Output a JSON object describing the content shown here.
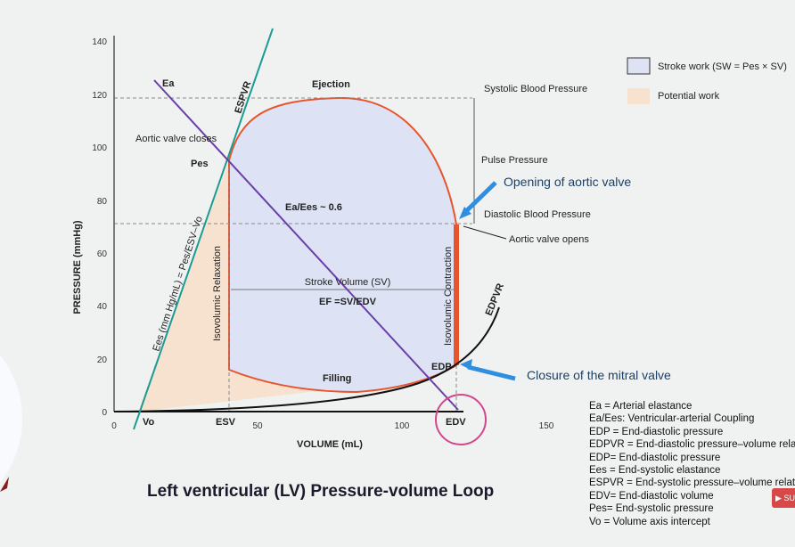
{
  "axes": {
    "y_label": "PRESSURE (mmHg)",
    "x_label": "VOLUME (mL)",
    "y_ticks": [
      "0",
      "20",
      "40",
      "60",
      "80",
      "100",
      "120",
      "140"
    ],
    "x_ticks": [
      "0",
      "50",
      "100",
      "150"
    ]
  },
  "labels": {
    "ea": "Ea",
    "espvr": "ESPVR",
    "ejection": "Ejection",
    "aortic_closes": "Aortic valve closes",
    "pes": "Pes",
    "ea_ees": "Ea/Ees ~ 0.6",
    "ees_formula": "Ees (mm Hg/mL) = Pes/ESV–Vo",
    "iso_relax": "Isovolumic Relaxation",
    "iso_contract": "Isovolumic Contraction",
    "sv": "Stroke Volume (SV)",
    "ef": "EF =SV/EDV",
    "filling": "Filling",
    "edp": "EDP",
    "edpvr": "EDPVR",
    "vo": "Vo",
    "esv": "ESV",
    "edv": "EDV",
    "systolic": "Systolic Blood Pressure",
    "pulse": "Pulse Pressure",
    "diastolic": "Diastolic Blood Pressure",
    "aortic_opens": "Aortic valve opens",
    "opening_aortic": "Opening of aortic valve",
    "closure_mitral": "Closure of the mitral valve"
  },
  "legend": [
    {
      "label": "Stroke work (SW = Pes × SV)",
      "color": "#dde3f5"
    },
    {
      "label": "Potential work",
      "color": "#f7e2cf"
    }
  ],
  "notes": [
    "Ea = Arterial elastance",
    "Ea/Ees: Ventricular-arterial Coupling",
    "EDP = End-diastolic pressure",
    "EDPVR = End-diastolic pressure–volume relation",
    "EDP= End-diastolic pressure",
    "Ees = End-systolic elastance",
    "ESPVR = End-systolic pressure–volume relation",
    "EDV= End-diastolic volume",
    "Pes= End-systolic pressure",
    "Vo = Volume axis intercept"
  ],
  "title": "Left ventricular (LV) Pressure-volume Loop",
  "subscribe": "SU"
}
